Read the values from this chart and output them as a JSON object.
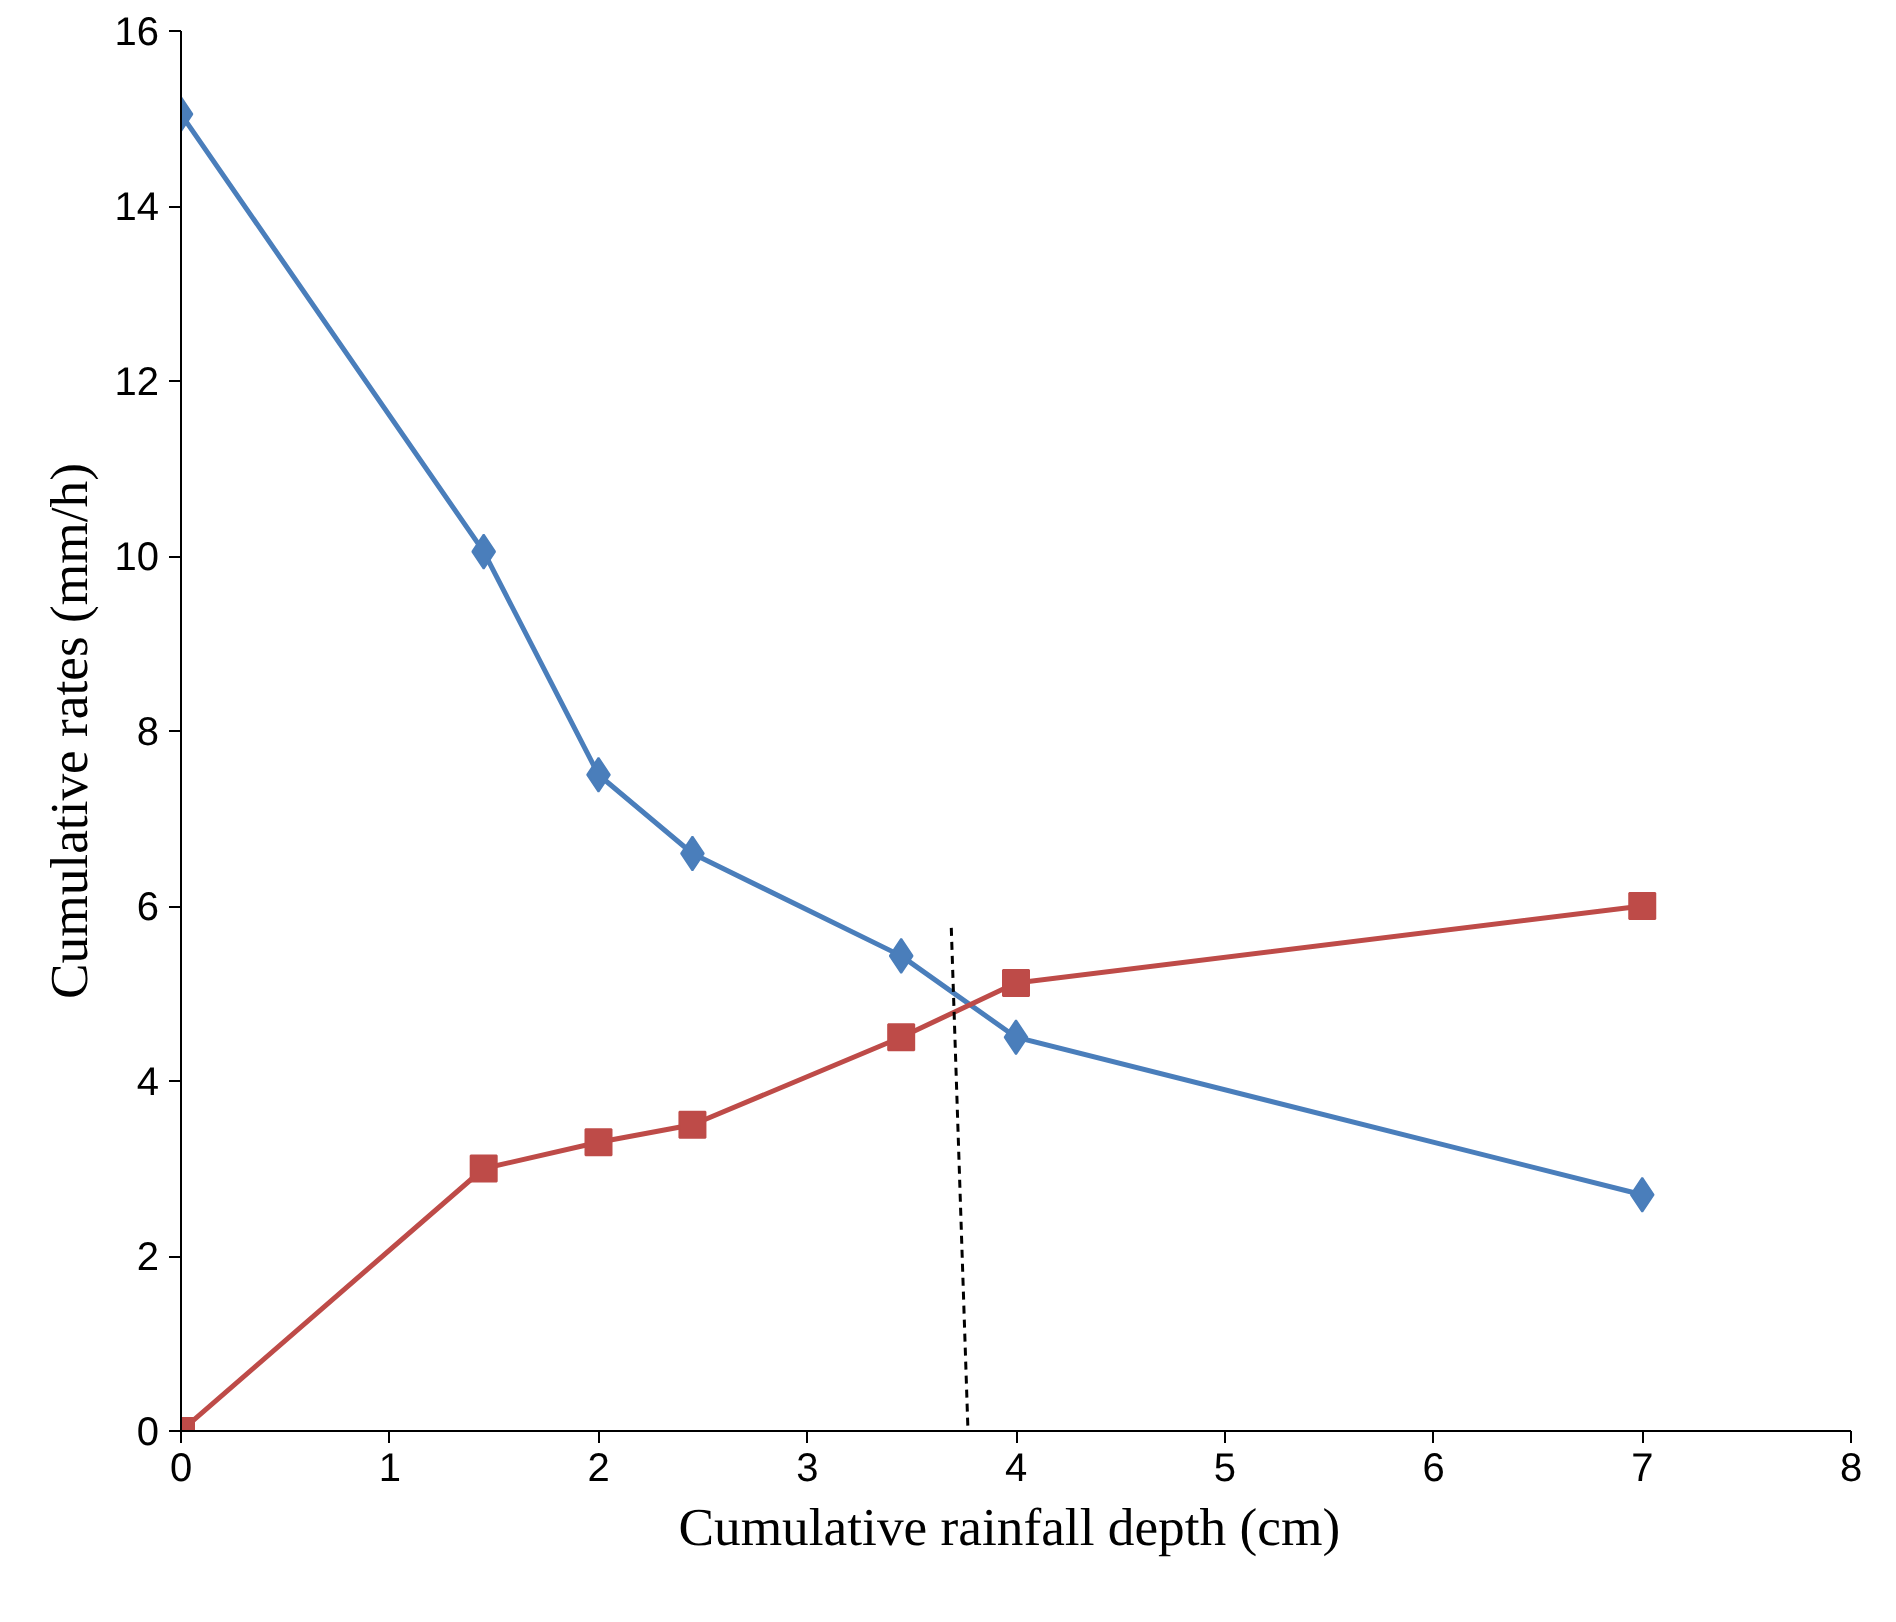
{
  "chart_data": {
    "type": "line",
    "xlabel": "Cumulative  rainfall depth (cm)",
    "ylabel": "Cumulative rates (mm/h)",
    "x": [
      0,
      1.45,
      2,
      2.45,
      3.45,
      4,
      7
    ],
    "series": [
      {
        "color": "#4a7ebb",
        "marker": "diamond",
        "values": [
          15.05,
          10.05,
          7.5,
          6.6,
          5.43,
          4.5,
          2.7
        ]
      },
      {
        "color": "#be4b48",
        "marker": "square",
        "values": [
          0,
          3,
          3.3,
          3.5,
          4.5,
          5.12,
          6
        ]
      },
      {
        "color": "#000000",
        "marker": "none",
        "line_style": "dashed",
        "x": [
          3.69,
          3.77
        ],
        "values": [
          5.75,
          0
        ]
      }
    ],
    "xlim": [
      0,
      8
    ],
    "ylim": [
      0,
      16
    ],
    "xticks": [
      0,
      1,
      2,
      3,
      4,
      5,
      6,
      7,
      8
    ],
    "yticks": [
      0,
      2,
      4,
      6,
      8,
      10,
      12,
      14,
      16
    ],
    "grid": false
  }
}
